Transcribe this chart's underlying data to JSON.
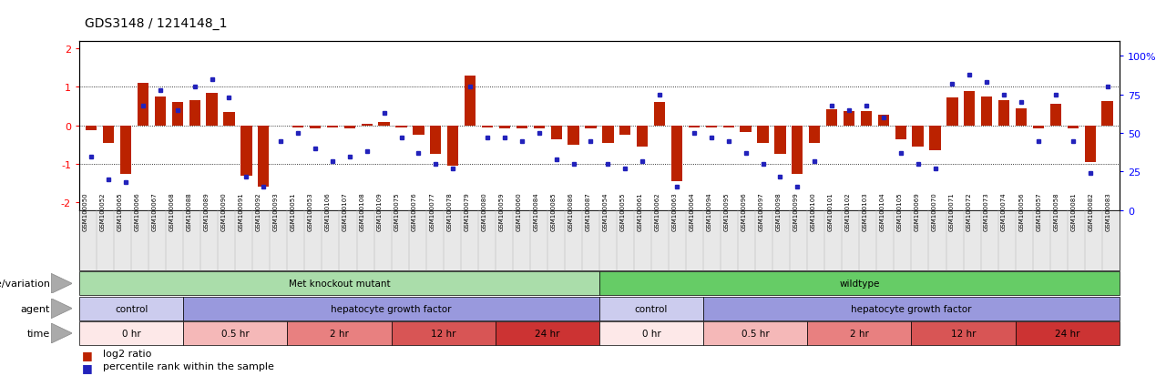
{
  "title": "GDS3148 / 1214148_1",
  "samples": [
    "GSM100050",
    "GSM100052",
    "GSM100065",
    "GSM100066",
    "GSM100067",
    "GSM100068",
    "GSM100088",
    "GSM100089",
    "GSM100090",
    "GSM100091",
    "GSM100092",
    "GSM100093",
    "GSM100051",
    "GSM100053",
    "GSM100106",
    "GSM100107",
    "GSM100108",
    "GSM100109",
    "GSM100075",
    "GSM100076",
    "GSM100077",
    "GSM100078",
    "GSM100079",
    "GSM100080",
    "GSM100059",
    "GSM100060",
    "GSM100084",
    "GSM100085",
    "GSM100086",
    "GSM100087",
    "GSM100054",
    "GSM100055",
    "GSM100061",
    "GSM100062",
    "GSM100063",
    "GSM100064",
    "GSM100094",
    "GSM100095",
    "GSM100096",
    "GSM100097",
    "GSM100098",
    "GSM100099",
    "GSM100100",
    "GSM100101",
    "GSM100102",
    "GSM100103",
    "GSM100104",
    "GSM100105",
    "GSM100069",
    "GSM100070",
    "GSM100071",
    "GSM100072",
    "GSM100073",
    "GSM100074",
    "GSM100056",
    "GSM100057",
    "GSM100058",
    "GSM100081",
    "GSM100082",
    "GSM100083"
  ],
  "log2_ratio": [
    -0.12,
    -0.45,
    -1.25,
    1.1,
    0.75,
    0.6,
    0.65,
    0.85,
    0.35,
    -1.3,
    -1.6,
    0.0,
    -0.05,
    -0.08,
    -0.05,
    -0.08,
    0.05,
    0.08,
    -0.05,
    -0.25,
    -0.75,
    -1.05,
    1.3,
    -0.05,
    -0.08,
    -0.08,
    -0.08,
    -0.35,
    -0.5,
    -0.08,
    -0.45,
    -0.25,
    -0.55,
    0.6,
    -1.45,
    -0.05,
    -0.05,
    -0.05,
    -0.18,
    -0.45,
    -0.75,
    -1.25,
    -0.45,
    0.42,
    0.38,
    0.38,
    0.28,
    -0.35,
    -0.55,
    -0.65,
    0.72,
    0.88,
    0.75,
    0.65,
    0.45,
    -0.08,
    0.55,
    -0.08,
    -0.95,
    0.62
  ],
  "percentile": [
    35,
    20,
    18,
    68,
    78,
    65,
    80,
    85,
    73,
    22,
    15,
    45,
    50,
    40,
    32,
    35,
    38,
    63,
    47,
    37,
    30,
    27,
    80,
    47,
    47,
    45,
    50,
    33,
    30,
    45,
    30,
    27,
    32,
    75,
    15,
    50,
    47,
    45,
    37,
    30,
    22,
    15,
    32,
    68,
    65,
    68,
    60,
    37,
    30,
    27,
    82,
    88,
    83,
    75,
    70,
    45,
    75,
    45,
    24,
    80
  ],
  "genotype_groups": [
    {
      "label": "Met knockout mutant",
      "start": 0,
      "end": 29,
      "color": "#aaddaa"
    },
    {
      "label": "wildtype",
      "start": 30,
      "end": 59,
      "color": "#66cc66"
    }
  ],
  "agent_groups": [
    {
      "label": "control",
      "start": 0,
      "end": 5,
      "color": "#ccccee"
    },
    {
      "label": "hepatocyte growth factor",
      "start": 6,
      "end": 29,
      "color": "#9999dd"
    },
    {
      "label": "control",
      "start": 30,
      "end": 35,
      "color": "#ccccee"
    },
    {
      "label": "hepatocyte growth factor",
      "start": 36,
      "end": 59,
      "color": "#9999dd"
    }
  ],
  "time_groups": [
    {
      "label": "0 hr",
      "start": 0,
      "end": 5,
      "color": "#fde8e8"
    },
    {
      "label": "0.5 hr",
      "start": 6,
      "end": 11,
      "color": "#f5b8b8"
    },
    {
      "label": "2 hr",
      "start": 12,
      "end": 17,
      "color": "#e88080"
    },
    {
      "label": "12 hr",
      "start": 18,
      "end": 23,
      "color": "#d85555"
    },
    {
      "label": "24 hr",
      "start": 24,
      "end": 29,
      "color": "#cc3333"
    },
    {
      "label": "0 hr",
      "start": 30,
      "end": 35,
      "color": "#fde8e8"
    },
    {
      "label": "0.5 hr",
      "start": 36,
      "end": 41,
      "color": "#f5b8b8"
    },
    {
      "label": "2 hr",
      "start": 42,
      "end": 47,
      "color": "#e88080"
    },
    {
      "label": "12 hr",
      "start": 48,
      "end": 53,
      "color": "#d85555"
    },
    {
      "label": "24 hr",
      "start": 54,
      "end": 59,
      "color": "#cc3333"
    }
  ],
  "ylim_left": [
    -2.2,
    2.2
  ],
  "yticks_left": [
    -2,
    -1,
    0,
    1,
    2
  ],
  "yticks_right": [
    0,
    25,
    50,
    75,
    100
  ],
  "bar_color": "#bb2200",
  "dot_color": "#2222bb",
  "bg_xtick": "#e8e8e8"
}
